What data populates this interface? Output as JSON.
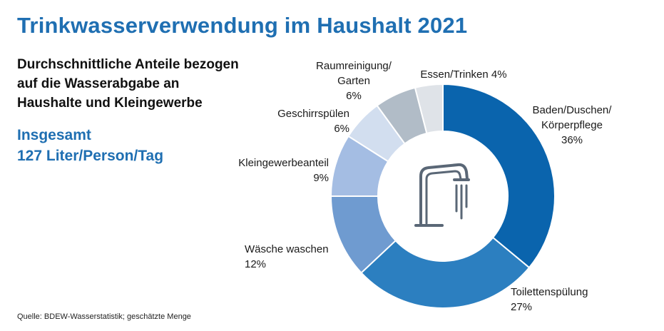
{
  "header": {
    "title": "Trinkwasserverwendung im Haushalt 2021",
    "subtitle_lines": [
      "Durchschnittliche Anteile bezogen",
      "auf die Wasserabgabe an",
      "Haushalte und Kleingewerbe"
    ],
    "total_lines": [
      "Insgesamt",
      "127 Liter/Person/Tag"
    ]
  },
  "footer": {
    "source": "Quelle: BDEW-Wasserstatistik; geschätzte Menge"
  },
  "center_icon": "water-tap-icon",
  "colors": {
    "title": "#1f6fb2",
    "slices": [
      "#0a64ad",
      "#2c7fc0",
      "#6f9bd0",
      "#a4bde3",
      "#d2deef",
      "#b1bcc7",
      "#dfe3e8"
    ]
  },
  "chart_data": {
    "type": "pie",
    "style": "donut",
    "unit": "%",
    "slices": [
      {
        "label_lines": [
          "Baden/Duschen/",
          "Körperpflege"
        ],
        "value_text": "36%",
        "value": 36
      },
      {
        "label_lines": [
          "Toilettenspülung"
        ],
        "value_text": "27%",
        "value": 27
      },
      {
        "label_lines": [
          "Wäsche waschen"
        ],
        "value_text": "12%",
        "value": 12
      },
      {
        "label_lines": [
          "Kleingewerbeanteil"
        ],
        "value_text": "9%",
        "value": 9
      },
      {
        "label_lines": [
          "Geschirrspülen"
        ],
        "value_text": "6%",
        "value": 6
      },
      {
        "label_lines": [
          "Raumreinigung/",
          "Garten"
        ],
        "value_text": "6%",
        "value": 6
      },
      {
        "label_lines": [
          "Essen/Trinken 4%"
        ],
        "value_text": "",
        "value": 4
      }
    ]
  }
}
